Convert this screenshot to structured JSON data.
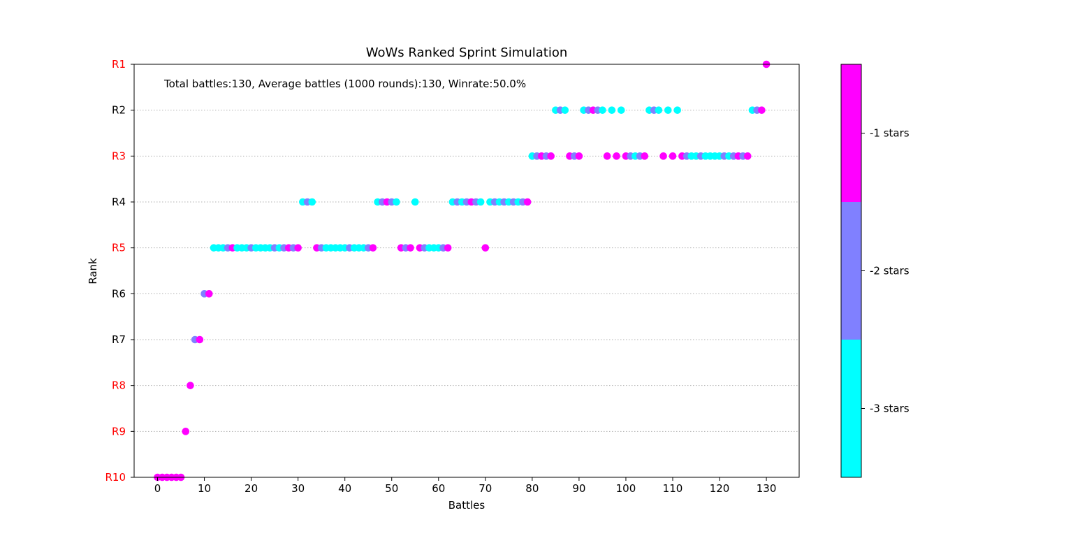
{
  "title": "WoWs Ranked Sprint Simulation",
  "annotation": "Total battles:130, Average battles (1000 rounds):130, Winrate:50.0%",
  "chart_data": {
    "type": "scatter",
    "title": "WoWs Ranked Sprint Simulation",
    "xlabel": "Battles",
    "ylabel": "Rank",
    "xlim": [
      -5,
      137
    ],
    "xticks": [
      "0",
      "10",
      "20",
      "30",
      "40",
      "50",
      "60",
      "70",
      "80",
      "90",
      "100",
      "110",
      "120",
      "130"
    ],
    "yticks": [
      {
        "label": "R1",
        "color": "#ff0000"
      },
      {
        "label": "R2",
        "color": "#000000"
      },
      {
        "label": "R3",
        "color": "#ff0000"
      },
      {
        "label": "R4",
        "color": "#000000"
      },
      {
        "label": "R5",
        "color": "#ff0000"
      },
      {
        "label": "R6",
        "color": "#000000"
      },
      {
        "label": "R7",
        "color": "#000000"
      },
      {
        "label": "R8",
        "color": "#ff0000"
      },
      {
        "label": "R9",
        "color": "#ff0000"
      },
      {
        "label": "R10",
        "color": "#ff0000"
      }
    ],
    "grid": "horizontal dotted",
    "colorbar": {
      "labels": [
        "-1 stars",
        "-2 stars",
        "-3 stars"
      ],
      "colors": [
        "#ff00ff",
        "#8080ff",
        "#00ffff"
      ]
    },
    "points": [
      {
        "x": 0,
        "rank": 10,
        "stars": -1
      },
      {
        "x": 1,
        "rank": 10,
        "stars": -1
      },
      {
        "x": 2,
        "rank": 10,
        "stars": -1
      },
      {
        "x": 3,
        "rank": 10,
        "stars": -1
      },
      {
        "x": 4,
        "rank": 10,
        "stars": -1
      },
      {
        "x": 5,
        "rank": 10,
        "stars": -1
      },
      {
        "x": 6,
        "rank": 9,
        "stars": -1
      },
      {
        "x": 7,
        "rank": 8,
        "stars": -1
      },
      {
        "x": 8,
        "rank": 7,
        "stars": -2
      },
      {
        "x": 9,
        "rank": 7,
        "stars": -1
      },
      {
        "x": 10,
        "rank": 6,
        "stars": -2
      },
      {
        "x": 11,
        "rank": 6,
        "stars": -1
      },
      {
        "x": 12,
        "rank": 5,
        "stars": -3
      },
      {
        "x": 13,
        "rank": 5,
        "stars": -3
      },
      {
        "x": 14,
        "rank": 5,
        "stars": -3
      },
      {
        "x": 15,
        "rank": 5,
        "stars": -2
      },
      {
        "x": 16,
        "rank": 5,
        "stars": -1
      },
      {
        "x": 17,
        "rank": 5,
        "stars": -3
      },
      {
        "x": 18,
        "rank": 5,
        "stars": -3
      },
      {
        "x": 19,
        "rank": 5,
        "stars": -3
      },
      {
        "x": 20,
        "rank": 5,
        "stars": -2
      },
      {
        "x": 21,
        "rank": 5,
        "stars": -3
      },
      {
        "x": 22,
        "rank": 5,
        "stars": -3
      },
      {
        "x": 23,
        "rank": 5,
        "stars": -3
      },
      {
        "x": 24,
        "rank": 5,
        "stars": -3
      },
      {
        "x": 25,
        "rank": 5,
        "stars": -2
      },
      {
        "x": 26,
        "rank": 5,
        "stars": -3
      },
      {
        "x": 27,
        "rank": 5,
        "stars": -2
      },
      {
        "x": 28,
        "rank": 5,
        "stars": -1
      },
      {
        "x": 29,
        "rank": 5,
        "stars": -2
      },
      {
        "x": 30,
        "rank": 5,
        "stars": -1
      },
      {
        "x": 31,
        "rank": 4,
        "stars": -3
      },
      {
        "x": 32,
        "rank": 4,
        "stars": -2
      },
      {
        "x": 33,
        "rank": 4,
        "stars": -3
      },
      {
        "x": 34,
        "rank": 5,
        "stars": -1
      },
      {
        "x": 35,
        "rank": 5,
        "stars": -2
      },
      {
        "x": 36,
        "rank": 5,
        "stars": -3
      },
      {
        "x": 37,
        "rank": 5,
        "stars": -3
      },
      {
        "x": 38,
        "rank": 5,
        "stars": -3
      },
      {
        "x": 39,
        "rank": 5,
        "stars": -3
      },
      {
        "x": 40,
        "rank": 5,
        "stars": -3
      },
      {
        "x": 41,
        "rank": 5,
        "stars": -2
      },
      {
        "x": 42,
        "rank": 5,
        "stars": -3
      },
      {
        "x": 43,
        "rank": 5,
        "stars": -3
      },
      {
        "x": 44,
        "rank": 5,
        "stars": -3
      },
      {
        "x": 45,
        "rank": 5,
        "stars": -2
      },
      {
        "x": 46,
        "rank": 5,
        "stars": -1
      },
      {
        "x": 47,
        "rank": 4,
        "stars": -3
      },
      {
        "x": 48,
        "rank": 4,
        "stars": -2
      },
      {
        "x": 49,
        "rank": 4,
        "stars": -1
      },
      {
        "x": 50,
        "rank": 4,
        "stars": -2
      },
      {
        "x": 51,
        "rank": 4,
        "stars": -3
      },
      {
        "x": 52,
        "rank": 5,
        "stars": -1
      },
      {
        "x": 53,
        "rank": 5,
        "stars": -2
      },
      {
        "x": 54,
        "rank": 5,
        "stars": -1
      },
      {
        "x": 55,
        "rank": 4,
        "stars": -3
      },
      {
        "x": 56,
        "rank": 5,
        "stars": -1
      },
      {
        "x": 57,
        "rank": 5,
        "stars": -2
      },
      {
        "x": 58,
        "rank": 5,
        "stars": -3
      },
      {
        "x": 59,
        "rank": 5,
        "stars": -3
      },
      {
        "x": 60,
        "rank": 5,
        "stars": -3
      },
      {
        "x": 61,
        "rank": 5,
        "stars": -2
      },
      {
        "x": 62,
        "rank": 5,
        "stars": -1
      },
      {
        "x": 63,
        "rank": 4,
        "stars": -3
      },
      {
        "x": 64,
        "rank": 4,
        "stars": -2
      },
      {
        "x": 65,
        "rank": 4,
        "stars": -3
      },
      {
        "x": 66,
        "rank": 4,
        "stars": -2
      },
      {
        "x": 67,
        "rank": 4,
        "stars": -1
      },
      {
        "x": 68,
        "rank": 4,
        "stars": -2
      },
      {
        "x": 69,
        "rank": 4,
        "stars": -3
      },
      {
        "x": 70,
        "rank": 5,
        "stars": -1
      },
      {
        "x": 71,
        "rank": 4,
        "stars": -3
      },
      {
        "x": 72,
        "rank": 4,
        "stars": -2
      },
      {
        "x": 73,
        "rank": 4,
        "stars": -3
      },
      {
        "x": 74,
        "rank": 4,
        "stars": -2
      },
      {
        "x": 75,
        "rank": 4,
        "stars": -3
      },
      {
        "x": 76,
        "rank": 4,
        "stars": -2
      },
      {
        "x": 77,
        "rank": 4,
        "stars": -3
      },
      {
        "x": 78,
        "rank": 4,
        "stars": -2
      },
      {
        "x": 79,
        "rank": 4,
        "stars": -1
      },
      {
        "x": 80,
        "rank": 3,
        "stars": -3
      },
      {
        "x": 81,
        "rank": 3,
        "stars": -2
      },
      {
        "x": 82,
        "rank": 3,
        "stars": -1
      },
      {
        "x": 83,
        "rank": 3,
        "stars": -2
      },
      {
        "x": 84,
        "rank": 3,
        "stars": -1
      },
      {
        "x": 85,
        "rank": 2,
        "stars": -3
      },
      {
        "x": 86,
        "rank": 2,
        "stars": -2
      },
      {
        "x": 87,
        "rank": 2,
        "stars": -3
      },
      {
        "x": 88,
        "rank": 3,
        "stars": -1
      },
      {
        "x": 89,
        "rank": 3,
        "stars": -2
      },
      {
        "x": 90,
        "rank": 3,
        "stars": -1
      },
      {
        "x": 91,
        "rank": 2,
        "stars": -3
      },
      {
        "x": 92,
        "rank": 2,
        "stars": -2
      },
      {
        "x": 93,
        "rank": 2,
        "stars": -1
      },
      {
        "x": 94,
        "rank": 2,
        "stars": -2
      },
      {
        "x": 95,
        "rank": 2,
        "stars": -3
      },
      {
        "x": 96,
        "rank": 3,
        "stars": -1
      },
      {
        "x": 97,
        "rank": 2,
        "stars": -3
      },
      {
        "x": 98,
        "rank": 3,
        "stars": -1
      },
      {
        "x": 99,
        "rank": 2,
        "stars": -3
      },
      {
        "x": 100,
        "rank": 3,
        "stars": -1
      },
      {
        "x": 101,
        "rank": 3,
        "stars": -2
      },
      {
        "x": 102,
        "rank": 3,
        "stars": -3
      },
      {
        "x": 103,
        "rank": 3,
        "stars": -2
      },
      {
        "x": 104,
        "rank": 3,
        "stars": -1
      },
      {
        "x": 105,
        "rank": 2,
        "stars": -3
      },
      {
        "x": 106,
        "rank": 2,
        "stars": -2
      },
      {
        "x": 107,
        "rank": 2,
        "stars": -3
      },
      {
        "x": 108,
        "rank": 3,
        "stars": -1
      },
      {
        "x": 109,
        "rank": 2,
        "stars": -3
      },
      {
        "x": 110,
        "rank": 3,
        "stars": -1
      },
      {
        "x": 111,
        "rank": 2,
        "stars": -3
      },
      {
        "x": 112,
        "rank": 3,
        "stars": -1
      },
      {
        "x": 113,
        "rank": 3,
        "stars": -2
      },
      {
        "x": 114,
        "rank": 3,
        "stars": -3
      },
      {
        "x": 115,
        "rank": 3,
        "stars": -3
      },
      {
        "x": 116,
        "rank": 3,
        "stars": -2
      },
      {
        "x": 117,
        "rank": 3,
        "stars": -3
      },
      {
        "x": 118,
        "rank": 3,
        "stars": -3
      },
      {
        "x": 119,
        "rank": 3,
        "stars": -3
      },
      {
        "x": 120,
        "rank": 3,
        "stars": -3
      },
      {
        "x": 121,
        "rank": 3,
        "stars": -2
      },
      {
        "x": 122,
        "rank": 3,
        "stars": -3
      },
      {
        "x": 123,
        "rank": 3,
        "stars": -2
      },
      {
        "x": 124,
        "rank": 3,
        "stars": -1
      },
      {
        "x": 125,
        "rank": 3,
        "stars": -2
      },
      {
        "x": 126,
        "rank": 3,
        "stars": -1
      },
      {
        "x": 127,
        "rank": 2,
        "stars": -3
      },
      {
        "x": 128,
        "rank": 2,
        "stars": -2
      },
      {
        "x": 129,
        "rank": 2,
        "stars": -1
      },
      {
        "x": 130,
        "rank": 1,
        "stars": -1
      }
    ]
  }
}
